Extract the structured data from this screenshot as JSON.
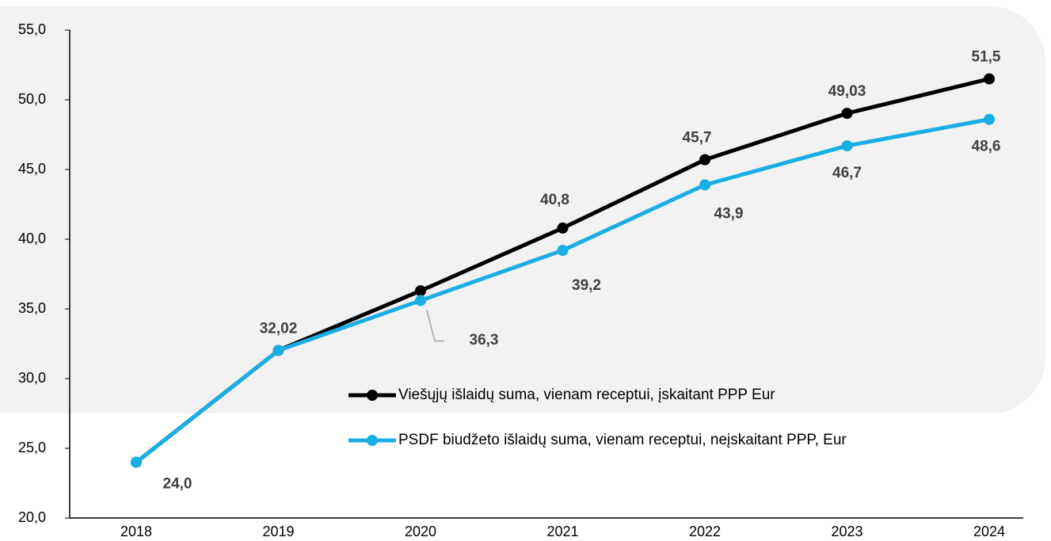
{
  "chart_data": {
    "type": "line",
    "categories": [
      "2018",
      "2019",
      "2020",
      "2021",
      "2022",
      "2023",
      "2024"
    ],
    "series": [
      {
        "name": "Viešųjų išlaidų suma, vienam receptui, įskaitant PPP Eur",
        "color": "#000000",
        "values": [
          24.0,
          32.02,
          36.3,
          40.8,
          45.7,
          49.03,
          51.5
        ],
        "value_labels": [
          "24,0",
          "32,02",
          "36,3",
          "40,8",
          "45,7",
          "49,03",
          "51,5"
        ]
      },
      {
        "name": "PSDF biudžeto išlaidų suma, vienam receptui, neįskaitant PPP, Eur",
        "color": "#1aaee5",
        "values": [
          24.0,
          32.02,
          35.6,
          39.2,
          43.9,
          46.7,
          48.6
        ],
        "value_labels": [
          null,
          null,
          null,
          "39,2",
          "43,9",
          "46,7",
          "48,6"
        ]
      }
    ],
    "ylim": [
      20,
      55
    ],
    "yticks": [
      {
        "value": 20,
        "label": "20,0"
      },
      {
        "value": 25,
        "label": "25,0"
      },
      {
        "value": 30,
        "label": "30,0"
      },
      {
        "value": 35,
        "label": "35,0"
      },
      {
        "value": 40,
        "label": "40,0"
      },
      {
        "value": 45,
        "label": "45,0"
      },
      {
        "value": 50,
        "label": "50,0"
      },
      {
        "value": 55,
        "label": "55,0"
      }
    ]
  }
}
